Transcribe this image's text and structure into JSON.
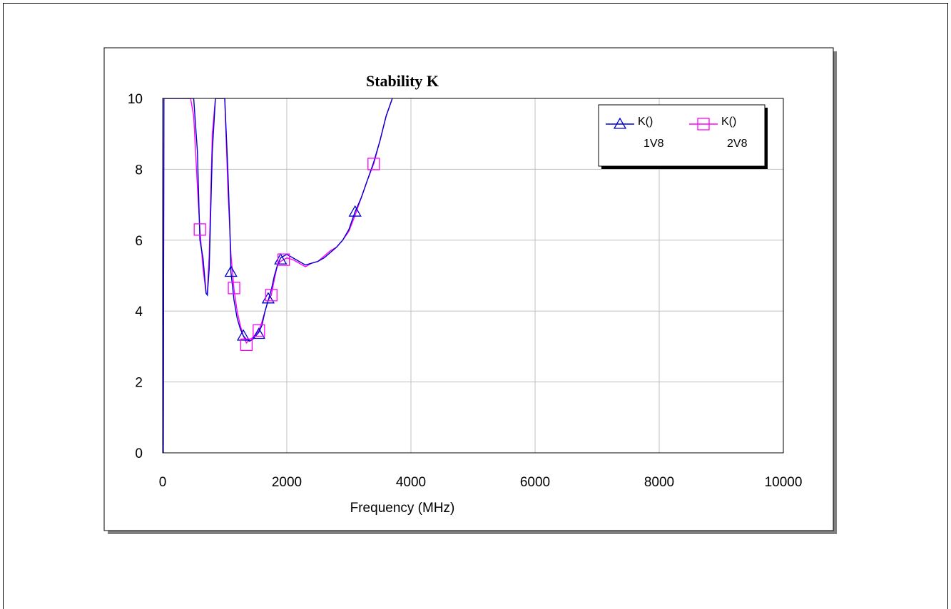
{
  "chart_data": {
    "type": "line",
    "title": "Stability K",
    "xlabel": "Frequency (MHz)",
    "ylabel": "",
    "xlim": [
      0,
      10000
    ],
    "ylim": [
      0,
      10
    ],
    "xticks": [
      0,
      2000,
      4000,
      6000,
      8000,
      10000
    ],
    "yticks": [
      0,
      2,
      4,
      6,
      8,
      10
    ],
    "xtick_labels": [
      "0",
      "2000",
      "4000",
      "6000",
      "8000",
      "10000"
    ],
    "ytick_labels": [
      "0",
      "2",
      "4",
      "6",
      "8",
      "10"
    ],
    "grid": true,
    "legend_position": "top-right",
    "series": [
      {
        "name": "K()\n1V8",
        "legend_label": "K()",
        "legend_sublabel": "1V8",
        "color": "#0000cc",
        "marker": "triangle",
        "x": [
          10,
          20,
          30,
          500,
          560,
          600,
          650,
          700,
          720,
          750,
          800,
          850,
          900,
          950,
          1000,
          1050,
          1080,
          1100,
          1150,
          1200,
          1250,
          1300,
          1350,
          1400,
          1450,
          1500,
          1550,
          1600,
          1650,
          1700,
          1750,
          1800,
          1850,
          1900,
          1950,
          2000,
          2100,
          2200,
          2300,
          2400,
          2500,
          2600,
          2700,
          2800,
          2900,
          3000,
          3100,
          3200,
          3300,
          3400,
          3500,
          3600,
          3700
        ],
        "y": [
          0,
          10,
          10,
          10,
          8.5,
          6.0,
          5.5,
          4.5,
          4.45,
          5.2,
          8.5,
          10,
          10,
          10,
          10,
          8.0,
          6.5,
          5.1,
          4.3,
          3.8,
          3.5,
          3.3,
          3.2,
          3.15,
          3.2,
          3.3,
          3.4,
          3.6,
          4.0,
          4.3,
          4.6,
          5.0,
          5.3,
          5.5,
          5.55,
          5.6,
          5.5,
          5.4,
          5.3,
          5.35,
          5.4,
          5.5,
          5.65,
          5.8,
          6.0,
          6.3,
          6.8,
          7.2,
          7.7,
          8.2,
          8.8,
          9.5,
          10
        ]
      },
      {
        "name": "K()\n2V8",
        "legend_label": "K()",
        "legend_sublabel": "2V8",
        "color": "#ff00ff",
        "marker": "square",
        "x": [
          10,
          20,
          30,
          450,
          500,
          560,
          600,
          650,
          700,
          720,
          750,
          800,
          850,
          900,
          950,
          1000,
          1050,
          1100,
          1150,
          1200,
          1250,
          1300,
          1350,
          1400,
          1450,
          1500,
          1550,
          1600,
          1650,
          1700,
          1750,
          1800,
          1850,
          1900,
          1950,
          2000,
          2100,
          2200,
          2300,
          2400,
          2500,
          2600,
          2700,
          2800,
          2900,
          3000,
          3100,
          3200,
          3300,
          3400,
          3500,
          3600,
          3700
        ],
        "y": [
          0,
          10,
          10,
          10,
          9.5,
          7.5,
          6.3,
          5.2,
          4.5,
          4.5,
          5.6,
          9.0,
          10,
          10,
          10,
          10,
          7.5,
          5.6,
          4.6,
          4.0,
          3.6,
          3.3,
          3.1,
          3.2,
          3.25,
          3.35,
          3.45,
          3.7,
          4.0,
          4.3,
          4.45,
          4.9,
          5.3,
          5.4,
          5.45,
          5.5,
          5.45,
          5.35,
          5.25,
          5.35,
          5.4,
          5.55,
          5.7,
          5.8,
          6.0,
          6.25,
          6.7,
          7.2,
          7.7,
          8.15,
          8.8,
          9.5,
          10
        ]
      }
    ],
    "markers": [
      {
        "series": 0,
        "points": [
          [
            1100,
            5.1
          ],
          [
            1300,
            3.3
          ],
          [
            1550,
            3.35
          ],
          [
            1700,
            4.35
          ],
          [
            1900,
            5.45
          ],
          [
            3100,
            6.8
          ]
        ]
      },
      {
        "series": 1,
        "points": [
          [
            600,
            6.3
          ],
          [
            1150,
            4.65
          ],
          [
            1350,
            3.05
          ],
          [
            1550,
            3.45
          ],
          [
            1750,
            4.45
          ],
          [
            1950,
            5.45
          ],
          [
            3400,
            8.15
          ]
        ]
      }
    ]
  }
}
